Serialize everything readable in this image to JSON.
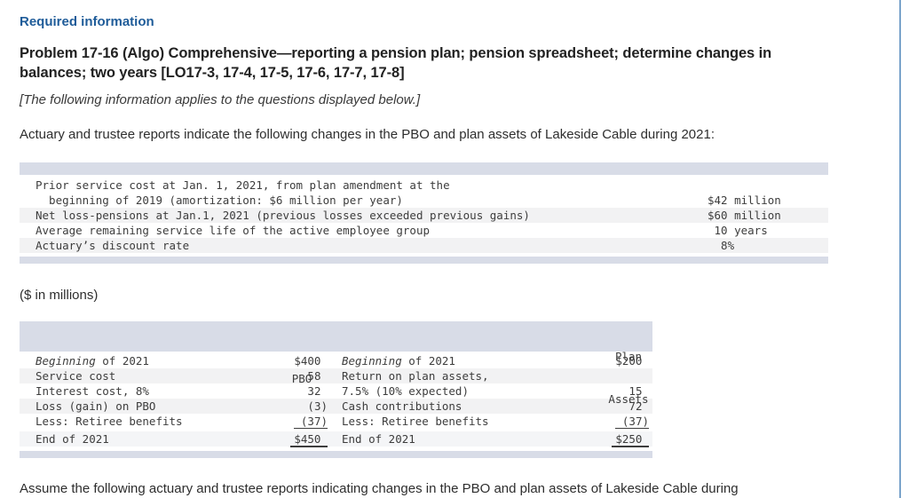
{
  "page": {
    "required_info_label": "Required information",
    "title": "Problem 17-16 (Algo) Comprehensive—reporting a pension plan; pension spreadsheet; determine changes in balances; two years [LO17-3, 17-4, 17-5, 17-6, 17-7, 17-8]",
    "note": "[The following information applies to the questions displayed below.]",
    "intro": "Actuary and trustee reports indicate the following changes in the PBO and plan assets of Lakeside Cable during 2021:",
    "millions_label": "($ in millions)",
    "bottom_text": "Assume the following actuary and trustee reports indicating changes in the PBO and plan assets of Lakeside Cable during"
  },
  "colors": {
    "heading_blue": "#1f5c99",
    "table_band": "#d8dce7",
    "row_stripe": "#f2f2f3",
    "scrollbar_blue": "#7aa3cb"
  },
  "info_table": {
    "rows": [
      {
        "label": "Prior service cost at Jan. 1, 2021, from plan amendment at the",
        "value": "",
        "shaded": false
      },
      {
        "label": "  beginning of 2019 (amortization: $6 million per year)",
        "value": "$42 million",
        "shaded": false
      },
      {
        "label": "Net loss-pensions at Jan.1, 2021 (previous losses exceeded previous gains)",
        "value": "$60 million",
        "shaded": true
      },
      {
        "label": "Average remaining service life of the active employee group",
        "value": " 10 years",
        "shaded": false
      },
      {
        "label": "Actuary’s discount rate",
        "value": "  8%",
        "shaded": true
      }
    ]
  },
  "pension_table": {
    "col_pbo": "PBO",
    "col_plan_line1": "Plan",
    "col_plan_line2": "Assets",
    "rows": [
      {
        "label1_italic": "Beginning",
        "label1": " of 2021",
        "val1": "$400 ",
        "label2_italic": "Beginning",
        "label2": " of 2021",
        "val2": "$200 ",
        "shaded": false,
        "underline": null,
        "total": false
      },
      {
        "label1_italic": "",
        "label1": "Service cost",
        "val1": "58 ",
        "label2_italic": "",
        "label2": "Return on plan assets,",
        "val2": "",
        "shaded": true,
        "underline": null,
        "total": false
      },
      {
        "label1_italic": "",
        "label1": "Interest cost, 8%",
        "val1": "32 ",
        "label2_italic": "",
        "label2": "7.5% (10% expected)",
        "val2": "15 ",
        "shaded": false,
        "underline": null,
        "total": false
      },
      {
        "label1_italic": "",
        "label1": "Loss (gain) on PBO",
        "val1": "(3)",
        "label2_italic": "",
        "label2": "Cash contributions",
        "val2": "72 ",
        "shaded": true,
        "underline": null,
        "total": false
      },
      {
        "label1_italic": "",
        "label1": "Less: Retiree benefits",
        "val1": "(37)",
        "label2_italic": "",
        "label2": "Less: Retiree benefits",
        "val2": "(37)",
        "shaded": false,
        "underline": "single",
        "total": false
      },
      {
        "label1_italic": "",
        "label1": "End of 2021",
        "val1": "$450 ",
        "label2_italic": "",
        "label2": "End of 2021",
        "val2": "$250 ",
        "shaded": false,
        "underline": "total",
        "total": true
      }
    ]
  }
}
